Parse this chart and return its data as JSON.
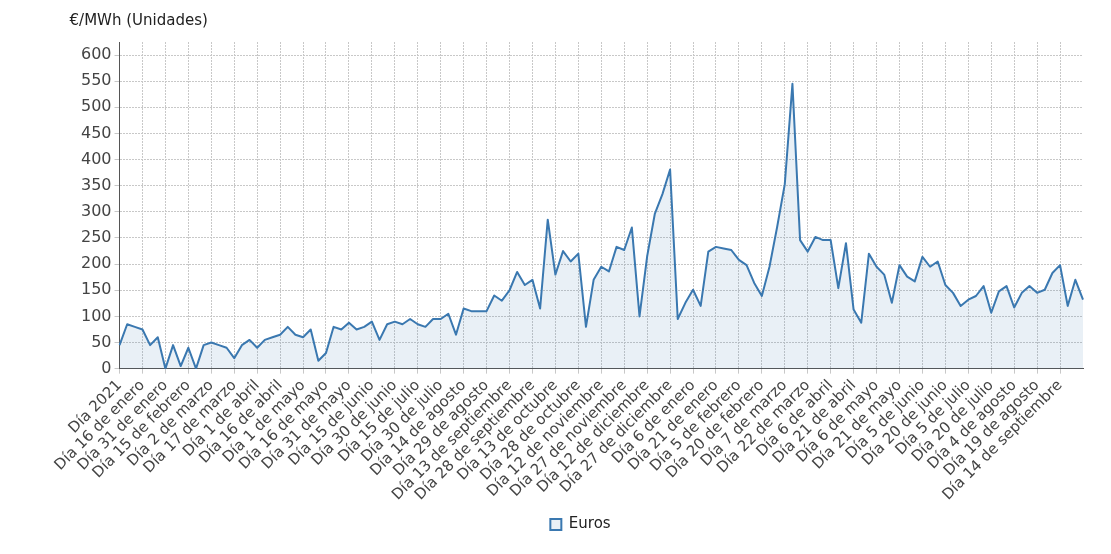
{
  "chart_data": {
    "type": "area",
    "ylabel": "€/MWh (Unidades)",
    "categories": [
      "Día 2021",
      null,
      null,
      "Día 16 de enero",
      null,
      null,
      "Día 31 de enero",
      null,
      null,
      "Día 15 de febrero",
      null,
      null,
      "Día 2 de marzo",
      null,
      null,
      "Día 17 de marzo",
      null,
      null,
      "Día 1 de abril",
      null,
      null,
      "Día 16 de abril",
      null,
      null,
      "Día 1 de mayo",
      null,
      null,
      "Día 16 de mayo",
      null,
      null,
      "Día 31 de mayo",
      null,
      null,
      "Día 15 de junio",
      null,
      null,
      "Día 30 de junio",
      null,
      null,
      "Día 15 de julio",
      null,
      null,
      "Día 30 de julio",
      null,
      null,
      "Día 14 de agosto",
      null,
      null,
      "Día 29 de agosto",
      null,
      null,
      "Día 13 de septiembre",
      null,
      null,
      "Día 28 de septiembre",
      null,
      null,
      "Día 13 de octubre",
      null,
      null,
      "Día 28 de octubre",
      null,
      null,
      "Día 12 de noviembre",
      null,
      null,
      "Día 27 de noviembre",
      null,
      null,
      "Día 12 de diciembre",
      null,
      null,
      "Día 27 de diciembre",
      null,
      null,
      "Día 6 de enero",
      null,
      null,
      "Día 21 de enero",
      null,
      null,
      "Día 5 de febrero",
      null,
      null,
      "Día 20 de febrero",
      null,
      null,
      "Día 7 de marzo",
      null,
      null,
      "Día 22 de marzo",
      null,
      null,
      "Día 6 de abril",
      null,
      null,
      "Día 21 de abril",
      null,
      null,
      "Día 6 de mayo",
      null,
      null,
      "Día 21 de mayo",
      null,
      null,
      "Día 5 de junio",
      null,
      null,
      "Día 20 de junio",
      null,
      null,
      "Día 5 de julio",
      null,
      null,
      "Día 20 de julio",
      null,
      null,
      "Día 4 de agosto",
      null,
      null,
      "Día 19 de agosto",
      null,
      null,
      "Día 14 de septiembre",
      null,
      null,
      null
    ],
    "series": [
      {
        "name": "Euros",
        "color": "#3a78b0",
        "values": [
          45,
          85,
          80,
          75,
          45,
          60,
          0,
          45,
          5,
          40,
          0,
          45,
          50,
          45,
          40,
          20,
          45,
          55,
          40,
          55,
          60,
          65,
          80,
          65,
          60,
          75,
          15,
          30,
          80,
          75,
          88,
          75,
          80,
          90,
          55,
          85,
          90,
          85,
          95,
          85,
          80,
          95,
          95,
          105,
          65,
          115,
          110,
          110,
          110,
          140,
          130,
          150,
          185,
          160,
          170,
          115,
          285,
          180,
          225,
          205,
          220,
          80,
          170,
          195,
          186,
          233,
          227,
          270,
          100,
          215,
          296,
          334,
          381,
          95,
          126,
          151,
          120,
          224,
          233,
          230,
          227,
          208,
          198,
          164,
          139,
          195,
          271,
          353,
          545,
          246,
          224,
          252,
          246,
          246,
          154,
          240,
          113,
          88,
          220,
          195,
          180,
          126,
          198,
          176,
          167,
          214,
          195,
          205,
          160,
          145,
          120,
          132,
          139,
          158,
          107,
          148,
          158,
          117,
          145,
          158,
          145,
          151,
          183,
          198,
          120,
          170,
          132
        ]
      }
    ],
    "ylim": [
      0,
      625
    ],
    "yticks": [
      0,
      50,
      100,
      150,
      200,
      250,
      300,
      350,
      400,
      450,
      500,
      550,
      600
    ],
    "grid": true,
    "legend": "bottom"
  }
}
